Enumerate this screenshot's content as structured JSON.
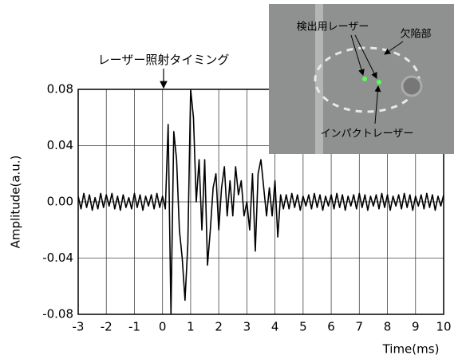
{
  "chart_data": {
    "type": "line",
    "annotation": "レーザー照射タイミング",
    "inset_labels": [
      "検出用レーザー",
      "欠陥部",
      "インパクトレーザー"
    ],
    "xlabel": "Time(ms)",
    "ylabel": "Amplitude(a.u.)",
    "xlim": [
      -3,
      10
    ],
    "ylim": [
      -0.08,
      0.08
    ],
    "xticks": [
      -3,
      -2,
      -1,
      0,
      1,
      2,
      3,
      4,
      5,
      6,
      7,
      8,
      9,
      10
    ],
    "yticks": [
      -0.08,
      -0.04,
      {
        "value": 0,
        "label": "0.00"
      },
      0.04,
      0.08
    ],
    "grid": true,
    "series": [
      {
        "color": "#000000",
        "x": [
          -3.0,
          -2.9,
          -2.8,
          -2.7,
          -2.6,
          -2.5,
          -2.4,
          -2.3,
          -2.2,
          -2.1,
          -2.0,
          -1.9,
          -1.8,
          -1.7,
          -1.6,
          -1.5,
          -1.4,
          -1.3,
          -1.2,
          -1.1,
          -1.0,
          -0.9,
          -0.8,
          -0.7,
          -0.6,
          -0.5,
          -0.4,
          -0.3,
          -0.2,
          -0.1,
          0.0,
          0.1,
          0.2,
          0.3,
          0.4,
          0.5,
          0.6,
          0.7,
          0.8,
          0.9,
          1.0,
          1.1,
          1.2,
          1.3,
          1.4,
          1.5,
          1.6,
          1.7,
          1.8,
          1.9,
          2.0,
          2.1,
          2.2,
          2.3,
          2.4,
          2.5,
          2.6,
          2.7,
          2.8,
          2.9,
          3.0,
          3.1,
          3.2,
          3.3,
          3.4,
          3.5,
          3.6,
          3.7,
          3.8,
          3.9,
          4.0,
          4.1,
          4.2,
          4.3,
          4.4,
          4.5,
          4.6,
          4.7,
          4.8,
          4.9,
          5.0,
          5.1,
          5.2,
          5.3,
          5.4,
          5.5,
          5.6,
          5.7,
          5.8,
          5.9,
          6.0,
          6.1,
          6.2,
          6.3,
          6.4,
          6.5,
          6.6,
          6.7,
          6.8,
          6.9,
          7.0,
          7.1,
          7.2,
          7.3,
          7.4,
          7.5,
          7.6,
          7.7,
          7.8,
          7.9,
          8.0,
          8.1,
          8.2,
          8.3,
          8.4,
          8.5,
          8.6,
          8.7,
          8.8,
          8.9,
          9.0,
          9.1,
          9.2,
          9.3,
          9.4,
          9.5,
          9.6,
          9.7,
          9.8,
          9.9,
          10.0
        ],
        "values": [
          0.004,
          -0.005,
          0.006,
          -0.004,
          0.005,
          -0.006,
          0.003,
          -0.005,
          0.006,
          -0.004,
          0.005,
          -0.003,
          0.006,
          -0.005,
          0.004,
          -0.006,
          0.005,
          -0.004,
          0.003,
          -0.005,
          0.006,
          -0.004,
          0.005,
          -0.006,
          0.004,
          -0.003,
          0.005,
          -0.005,
          0.006,
          -0.004,
          0.004,
          -0.005,
          0.055,
          -0.08,
          0.05,
          0.03,
          -0.02,
          -0.04,
          -0.07,
          -0.03,
          0.08,
          0.06,
          0.0,
          0.03,
          -0.02,
          0.03,
          -0.045,
          -0.02,
          0.01,
          0.02,
          -0.02,
          0.01,
          0.025,
          -0.01,
          0.015,
          -0.01,
          0.025,
          0.005,
          0.015,
          -0.01,
          0.0,
          -0.02,
          0.02,
          -0.035,
          0.02,
          0.03,
          0.01,
          -0.01,
          0.01,
          -0.01,
          0.015,
          -0.025,
          0.005,
          -0.005,
          0.005,
          -0.005,
          0.006,
          -0.004,
          0.005,
          -0.006,
          0.004,
          -0.003,
          0.005,
          -0.005,
          0.006,
          -0.004,
          0.005,
          -0.006,
          0.004,
          -0.003,
          0.005,
          -0.005,
          0.006,
          -0.004,
          0.005,
          -0.006,
          0.004,
          -0.003,
          0.005,
          -0.005,
          0.006,
          -0.004,
          0.005,
          -0.006,
          0.004,
          -0.003,
          0.005,
          -0.005,
          0.006,
          -0.004,
          0.005,
          -0.006,
          0.004,
          -0.003,
          0.005,
          -0.005,
          0.006,
          -0.004,
          0.005,
          -0.006,
          0.004,
          -0.003,
          0.005,
          -0.005,
          0.006,
          -0.004,
          0.005,
          -0.006,
          0.004,
          -0.003,
          0.005
        ]
      }
    ]
  }
}
